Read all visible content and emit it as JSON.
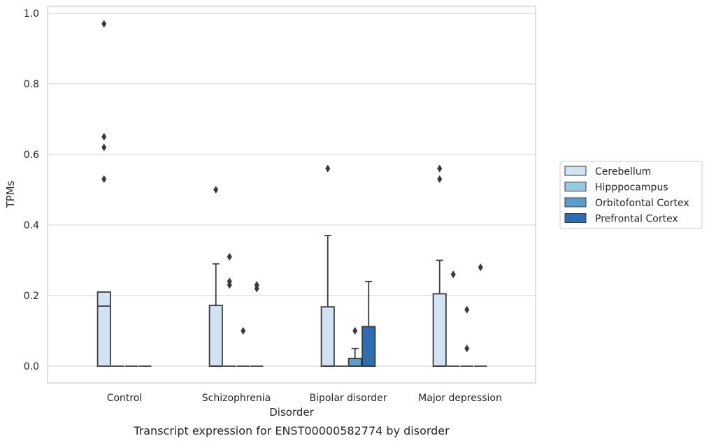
{
  "chart_data": {
    "type": "boxplot",
    "caption": "Transcript expression for ENST00000582774 by disorder",
    "xlabel": "Disorder",
    "ylabel": "TPMs",
    "ylim": [
      -0.045,
      1.02
    ],
    "yticks": [
      "0.0",
      "0.2",
      "0.4",
      "0.6",
      "0.8",
      "1.0"
    ],
    "grid": true,
    "legend_placement": "right",
    "categories": [
      "Control",
      "Schizophrenia",
      "Bipolar disorder",
      "Major depression"
    ],
    "series": [
      {
        "name": "Cerebellum",
        "color": "#d2e3f3",
        "boxes": [
          {
            "q1": 0.0,
            "median": 0.17,
            "q3": 0.21,
            "whisker_low": 0.0,
            "whisker_high": 0.21,
            "outliers": [
              0.97,
              0.62,
              0.65,
              0.53
            ]
          },
          {
            "q1": 0.0,
            "median": 0.0,
            "q3": 0.172,
            "whisker_low": 0.0,
            "whisker_high": 0.29,
            "outliers": [
              0.5
            ]
          },
          {
            "q1": 0.0,
            "median": 0.0,
            "q3": 0.168,
            "whisker_low": 0.0,
            "whisker_high": 0.37,
            "outliers": [
              0.56
            ]
          },
          {
            "q1": 0.0,
            "median": 0.0,
            "q3": 0.205,
            "whisker_low": 0.0,
            "whisker_high": 0.3,
            "outliers": [
              0.53,
              0.56
            ]
          }
        ]
      },
      {
        "name": "Hipppocampus",
        "color": "#9ac8e0",
        "boxes": [
          {
            "q1": 0.0,
            "median": 0.0,
            "q3": 0.0,
            "whisker_low": 0.0,
            "whisker_high": 0.0,
            "outliers": []
          },
          {
            "q1": 0.0,
            "median": 0.0,
            "q3": 0.0,
            "whisker_low": 0.0,
            "whisker_high": 0.0,
            "outliers": [
              0.31,
              0.24,
              0.23
            ]
          },
          {
            "q1": 0.0,
            "median": 0.0,
            "q3": 0.0,
            "whisker_low": 0.0,
            "whisker_high": 0.0,
            "outliers": []
          },
          {
            "q1": 0.0,
            "median": 0.0,
            "q3": 0.0,
            "whisker_low": 0.0,
            "whisker_high": 0.0,
            "outliers": [
              0.26
            ]
          }
        ]
      },
      {
        "name": "Orbitofontal Cortex",
        "color": "#5a9ec9",
        "boxes": [
          {
            "q1": 0.0,
            "median": 0.0,
            "q3": 0.0,
            "whisker_low": 0.0,
            "whisker_high": 0.0,
            "outliers": []
          },
          {
            "q1": 0.0,
            "median": 0.0,
            "q3": 0.0,
            "whisker_low": 0.0,
            "whisker_high": 0.0,
            "outliers": [
              0.1
            ]
          },
          {
            "q1": 0.0,
            "median": 0.0,
            "q3": 0.022,
            "whisker_low": 0.0,
            "whisker_high": 0.05,
            "outliers": [
              0.1
            ]
          },
          {
            "q1": 0.0,
            "median": 0.0,
            "q3": 0.0,
            "whisker_low": 0.0,
            "whisker_high": 0.0,
            "outliers": [
              0.16,
              0.05
            ]
          }
        ]
      },
      {
        "name": "Prefrontal Cortex",
        "color": "#2e6eb0",
        "boxes": [
          {
            "q1": 0.0,
            "median": 0.0,
            "q3": 0.0,
            "whisker_low": 0.0,
            "whisker_high": 0.0,
            "outliers": []
          },
          {
            "q1": 0.0,
            "median": 0.0,
            "q3": 0.0,
            "whisker_low": 0.0,
            "whisker_high": 0.0,
            "outliers": [
              0.23,
              0.22
            ]
          },
          {
            "q1": 0.0,
            "median": 0.0,
            "q3": 0.112,
            "whisker_low": 0.0,
            "whisker_high": 0.24,
            "outliers": []
          },
          {
            "q1": 0.0,
            "median": 0.0,
            "q3": 0.0,
            "whisker_low": 0.0,
            "whisker_high": 0.0,
            "outliers": [
              0.28
            ]
          }
        ]
      }
    ]
  }
}
